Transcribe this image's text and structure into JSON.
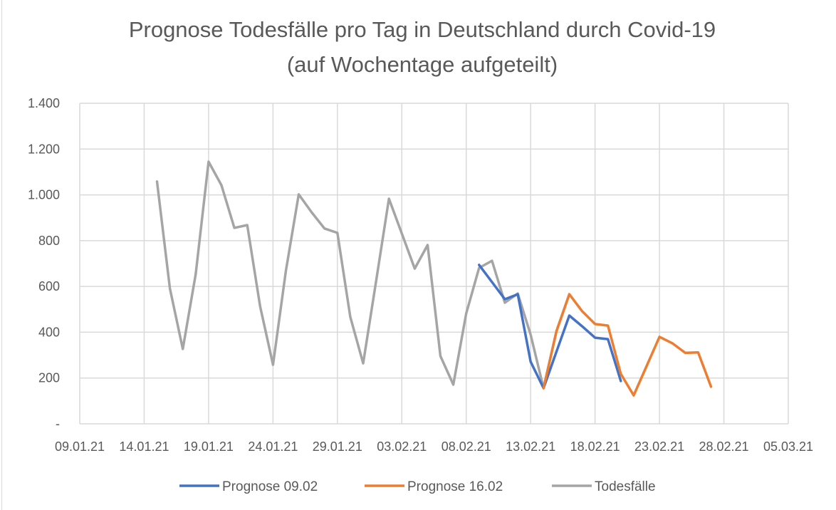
{
  "chart_data": {
    "type": "line",
    "title": [
      "Prognose Todesfälle pro Tag in Deutschland durch Covid-19",
      "(auf Wochentage aufgeteilt)"
    ],
    "xlabel": "",
    "ylabel": "",
    "ylim": [
      0,
      1400
    ],
    "yticks": [
      0,
      200,
      400,
      600,
      800,
      1000,
      1200,
      1400
    ],
    "ytick_labels": [
      "-",
      "200",
      "400",
      "600",
      "800",
      "1.000",
      "1.200",
      "1.400"
    ],
    "x_start": "2021-01-09",
    "x_end": "2021-03-05",
    "xtick_labels": [
      "09.01.21",
      "14.01.21",
      "19.01.21",
      "24.01.21",
      "29.01.21",
      "03.02.21",
      "08.02.21",
      "13.02.21",
      "18.02.21",
      "23.02.21",
      "28.02.21",
      "05.03.21"
    ],
    "grid": true,
    "legend_position": "bottom",
    "series": [
      {
        "name": "Prognose 09.02",
        "color": "#4472c4",
        "start_day": 31,
        "values": [
          694,
          619,
          544,
          566,
          271,
          156,
          315,
          473,
          426,
          376,
          370,
          187
        ]
      },
      {
        "name": "Prognose 16.02",
        "color": "#ed7d31",
        "start_day": 36,
        "values": [
          156,
          404,
          566,
          492,
          436,
          429,
          218,
          124,
          252,
          380,
          352,
          310,
          312,
          162
        ]
      },
      {
        "name": "Todesfälle",
        "color": "#a5a5a5",
        "start_day": 6,
        "values": [
          1058,
          591,
          327,
          653,
          1145,
          1042,
          856,
          868,
          513,
          258,
          669,
          1002,
          924,
          853,
          834,
          467,
          264,
          622,
          983,
          831,
          678,
          781,
          296,
          171,
          482,
          681,
          712,
          529,
          569,
          389,
          156,
          404,
          566
        ]
      }
    ]
  }
}
